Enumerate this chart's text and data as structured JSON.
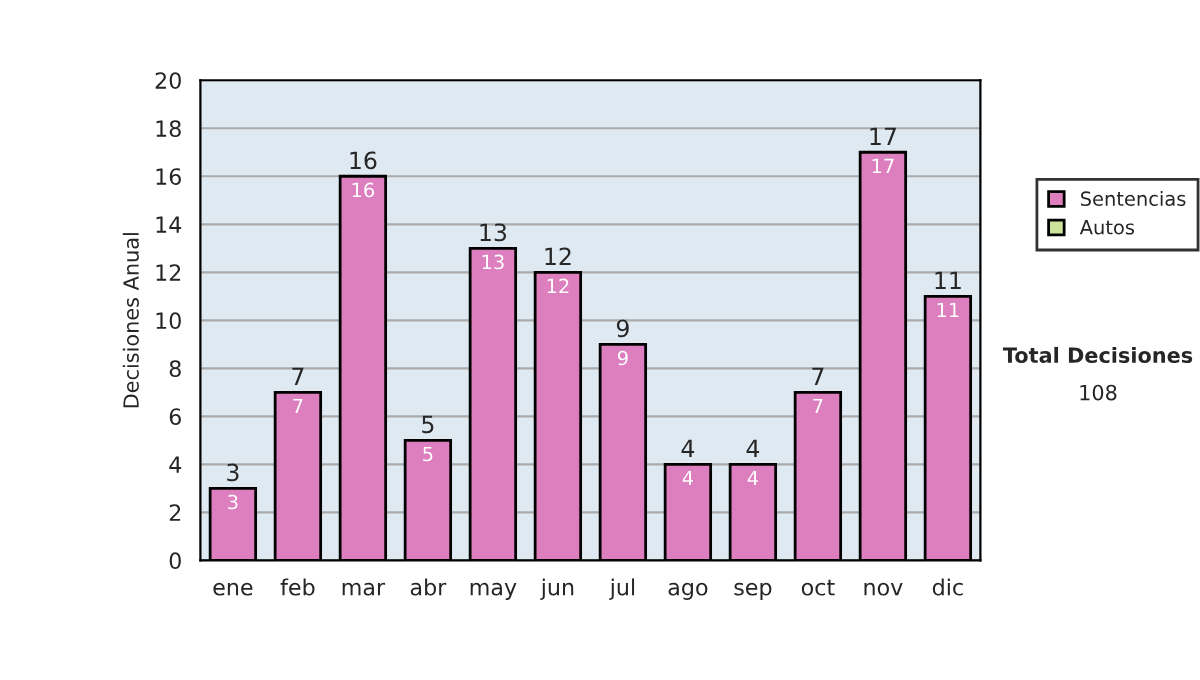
{
  "chart_data": {
    "type": "bar",
    "stacked": true,
    "ylabel": "Decisiones Anual",
    "categories": [
      "ene",
      "feb",
      "mar",
      "abr",
      "may",
      "jun",
      "jul",
      "ago",
      "sep",
      "oct",
      "nov",
      "dic"
    ],
    "series": [
      {
        "name": "Sentencias",
        "color": "#dd7fbf",
        "values": [
          3,
          7,
          16,
          5,
          13,
          12,
          9,
          4,
          4,
          7,
          17,
          11
        ],
        "value_labels": [
          "3",
          "7",
          "16",
          "5",
          "13",
          "12",
          "9",
          "4",
          "4",
          "7",
          "17",
          "11"
        ]
      },
      {
        "name": "Autos",
        "color": "#cce59a",
        "values": [
          0,
          0,
          0,
          0,
          0,
          0,
          0,
          0,
          0,
          0,
          0,
          0
        ]
      }
    ],
    "totals": [
      "3",
      "7",
      "16",
      "5",
      "13",
      "12",
      "9",
      "4",
      "4",
      "7",
      "17",
      "11"
    ],
    "ylim": [
      0,
      20
    ],
    "yticks": [
      0,
      2,
      4,
      6,
      8,
      10,
      12,
      14,
      16,
      18,
      20
    ],
    "grid": "y",
    "legend": "right",
    "annotations": [
      "Total Decisiones",
      "108"
    ]
  }
}
